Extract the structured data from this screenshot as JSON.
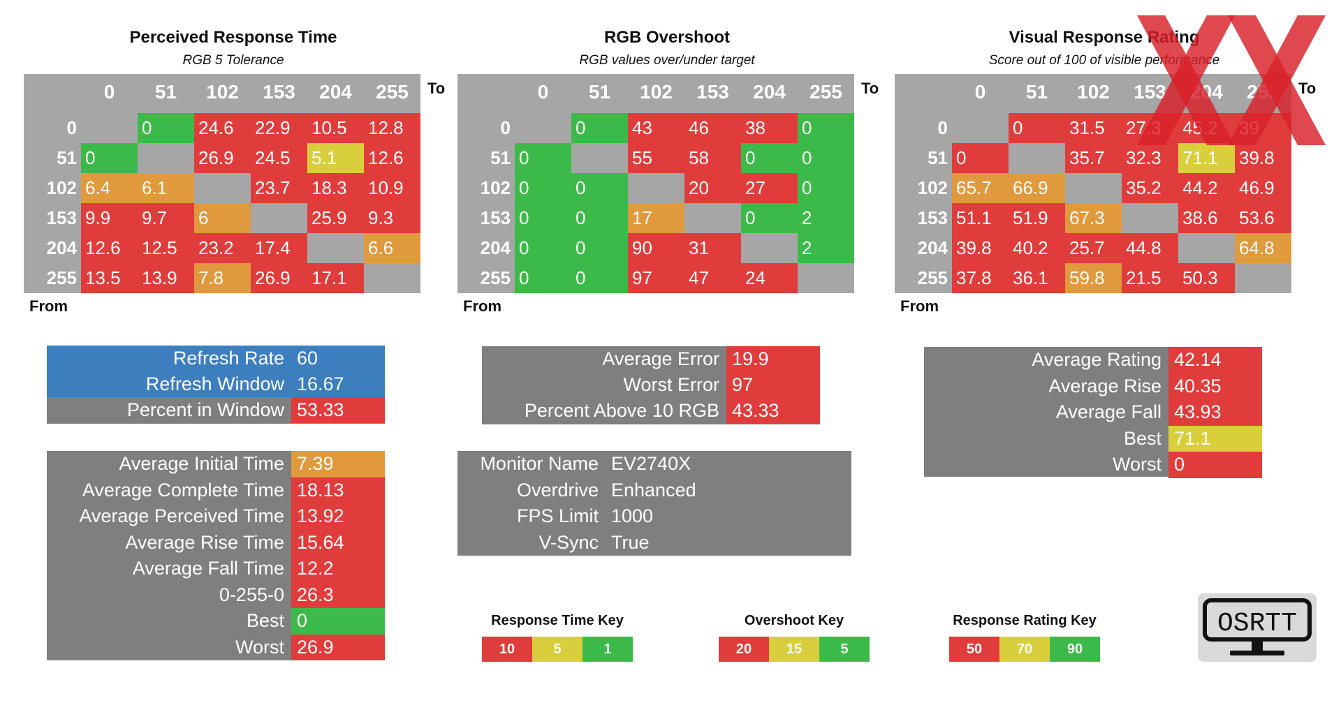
{
  "colors": {
    "red": "#e03c3c",
    "orange": "#e0993c",
    "yellow": "#d9cf3c",
    "green": "#3cba49",
    "header_grey": "#a6a6a6",
    "diagonal_grey": "#d9d9d9",
    "panel_grey": "#7f7f7f",
    "blue": "#3d7ebf"
  },
  "chart_data": [
    {
      "type": "heatmap",
      "title": "Perceived Response Time",
      "subtitle": "RGB 5 Tolerance",
      "to_label": "To",
      "from_label": "From",
      "columns": [
        "0",
        "51",
        "102",
        "153",
        "204",
        "255"
      ],
      "rows": [
        "0",
        "51",
        "102",
        "153",
        "204",
        "255"
      ],
      "values": [
        [
          null,
          "0",
          "24.6",
          "22.9",
          "10.5",
          "12.8"
        ],
        [
          "0",
          null,
          "26.9",
          "24.5",
          "5.1",
          "12.6"
        ],
        [
          "6.4",
          "6.1",
          null,
          "23.7",
          "18.3",
          "10.9"
        ],
        [
          "9.9",
          "9.7",
          "6",
          null,
          "25.9",
          "9.3"
        ],
        [
          "12.6",
          "12.5",
          "23.2",
          "17.4",
          null,
          "6.6"
        ],
        [
          "13.5",
          "13.9",
          "7.8",
          "26.9",
          "17.1",
          null
        ]
      ],
      "colors": [
        [
          "grey",
          "green",
          "red",
          "red",
          "red",
          "red"
        ],
        [
          "green",
          "grey",
          "red",
          "red",
          "yellow",
          "red"
        ],
        [
          "orange",
          "orange",
          "grey",
          "red",
          "red",
          "red"
        ],
        [
          "red",
          "red",
          "orange",
          "grey",
          "red",
          "red"
        ],
        [
          "red",
          "red",
          "red",
          "red",
          "grey",
          "orange"
        ],
        [
          "red",
          "red",
          "orange",
          "red",
          "red",
          "grey"
        ]
      ]
    },
    {
      "type": "heatmap",
      "title": "RGB Overshoot",
      "subtitle": "RGB values over/under target",
      "to_label": "To",
      "from_label": "From",
      "columns": [
        "0",
        "51",
        "102",
        "153",
        "204",
        "255"
      ],
      "rows": [
        "0",
        "51",
        "102",
        "153",
        "204",
        "255"
      ],
      "values": [
        [
          null,
          "0",
          "43",
          "46",
          "38",
          "0"
        ],
        [
          "0",
          null,
          "55",
          "58",
          "0",
          "0"
        ],
        [
          "0",
          "0",
          null,
          "20",
          "27",
          "0"
        ],
        [
          "0",
          "0",
          "17",
          null,
          "0",
          "2"
        ],
        [
          "0",
          "0",
          "90",
          "31",
          null,
          "2"
        ],
        [
          "0",
          "0",
          "97",
          "47",
          "24",
          null
        ]
      ],
      "colors": [
        [
          "grey",
          "green",
          "red",
          "red",
          "red",
          "green"
        ],
        [
          "green",
          "grey",
          "red",
          "red",
          "green",
          "green"
        ],
        [
          "green",
          "green",
          "grey",
          "red",
          "red",
          "green"
        ],
        [
          "green",
          "green",
          "orange",
          "grey",
          "green",
          "green"
        ],
        [
          "green",
          "green",
          "red",
          "red",
          "grey",
          "green"
        ],
        [
          "green",
          "green",
          "red",
          "red",
          "red",
          "grey"
        ]
      ]
    },
    {
      "type": "heatmap",
      "title": "Visual Response Rating",
      "subtitle": "Score out of 100 of visible performance",
      "to_label": "To",
      "from_label": "From",
      "columns": [
        "0",
        "51",
        "102",
        "153",
        "204",
        "255"
      ],
      "rows": [
        "0",
        "51",
        "102",
        "153",
        "204",
        "255"
      ],
      "values": [
        [
          null,
          "0",
          "31.5",
          "27.3",
          "45.2",
          "39"
        ],
        [
          "0",
          null,
          "35.7",
          "32.3",
          "71.1",
          "39.8"
        ],
        [
          "65.7",
          "66.9",
          null,
          "35.2",
          "44.2",
          "46.9"
        ],
        [
          "51.1",
          "51.9",
          "67.3",
          null,
          "38.6",
          "53.6"
        ],
        [
          "39.8",
          "40.2",
          "25.7",
          "44.8",
          null,
          "64.8"
        ],
        [
          "37.8",
          "36.1",
          "59.8",
          "21.5",
          "50.3",
          null
        ]
      ],
      "colors": [
        [
          "grey",
          "red",
          "red",
          "red",
          "red",
          "red"
        ],
        [
          "red",
          "grey",
          "red",
          "red",
          "yellow",
          "red"
        ],
        [
          "orange",
          "orange",
          "grey",
          "red",
          "red",
          "red"
        ],
        [
          "red",
          "red",
          "orange",
          "grey",
          "red",
          "red"
        ],
        [
          "red",
          "red",
          "red",
          "red",
          "grey",
          "orange"
        ],
        [
          "red",
          "red",
          "orange",
          "red",
          "red",
          "grey"
        ]
      ]
    }
  ],
  "refresh_box": [
    {
      "label": "Refresh Rate",
      "value": "60",
      "color": "blue"
    },
    {
      "label": "Refresh Window",
      "value": "16.67",
      "color": "blue"
    },
    {
      "label": "Percent in Window",
      "value": "53.33",
      "color": "red"
    }
  ],
  "time_stats": [
    {
      "label": "Average Initial Time",
      "value": "7.39",
      "color": "orange"
    },
    {
      "label": "Average Complete Time",
      "value": "18.13",
      "color": "red"
    },
    {
      "label": "Average Perceived Time",
      "value": "13.92",
      "color": "red"
    },
    {
      "label": "Average Rise Time",
      "value": "15.64",
      "color": "red"
    },
    {
      "label": "Average Fall Time",
      "value": "12.2",
      "color": "red"
    },
    {
      "label": "0-255-0",
      "value": "26.3",
      "color": "red"
    },
    {
      "label": "Best",
      "value": "0",
      "color": "green"
    },
    {
      "label": "Worst",
      "value": "26.9",
      "color": "red"
    }
  ],
  "overshoot_stats": [
    {
      "label": "Average Error",
      "value": "19.9",
      "color": "red"
    },
    {
      "label": "Worst Error",
      "value": "97",
      "color": "red"
    },
    {
      "label": "Percent Above 10 RGB",
      "value": "43.33",
      "color": "red"
    }
  ],
  "monitor_info": [
    {
      "label": "Monitor Name",
      "value": "EV2740X"
    },
    {
      "label": "Overdrive",
      "value": "Enhanced"
    },
    {
      "label": "FPS Limit",
      "value": "1000"
    },
    {
      "label": "V-Sync",
      "value": "True"
    }
  ],
  "rating_stats": [
    {
      "label": "Average Rating",
      "value": "42.14",
      "color": "red"
    },
    {
      "label": "Average Rise",
      "value": "40.35",
      "color": "red"
    },
    {
      "label": "Average Fall",
      "value": "43.93",
      "color": "red"
    },
    {
      "label": "Best",
      "value": "71.1",
      "color": "yellow"
    },
    {
      "label": "Worst",
      "value": "0",
      "color": "red"
    }
  ],
  "keys": [
    {
      "title": "Response Time Key",
      "items": [
        {
          "label": "10",
          "color": "red"
        },
        {
          "label": "5",
          "color": "yellow"
        },
        {
          "label": "1",
          "color": "green"
        }
      ]
    },
    {
      "title": "Overshoot Key",
      "items": [
        {
          "label": "20",
          "color": "red"
        },
        {
          "label": "15",
          "color": "yellow"
        },
        {
          "label": "5",
          "color": "green"
        }
      ]
    },
    {
      "title": "Response Rating Key",
      "items": [
        {
          "label": "50",
          "color": "red"
        },
        {
          "label": "70",
          "color": "yellow"
        },
        {
          "label": "90",
          "color": "green"
        }
      ]
    }
  ],
  "logo": {
    "text": "OSRTT",
    "icon": "monitor-logo-icon"
  },
  "watermark": {
    "icon": "xx-watermark-icon",
    "color": "#d9202a"
  }
}
